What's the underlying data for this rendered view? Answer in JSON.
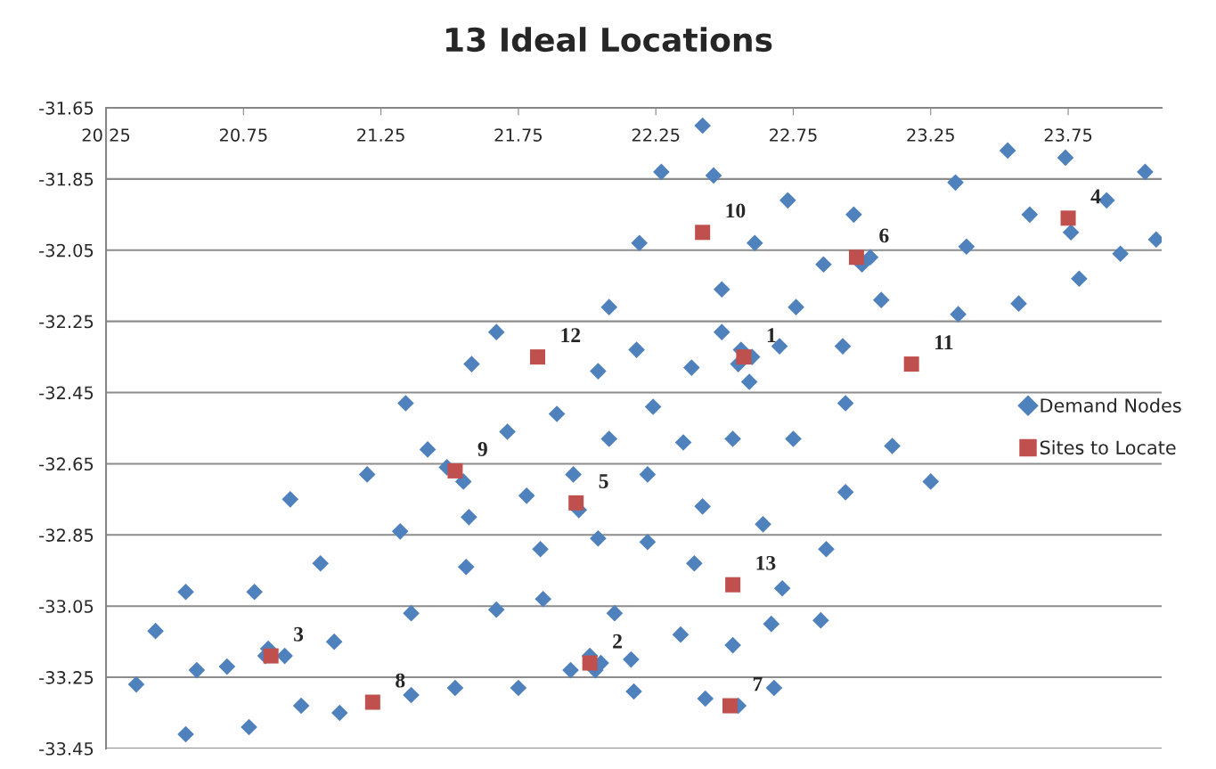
{
  "chart_data": {
    "type": "scatter",
    "title": "13 Ideal Locations",
    "xlim": [
      20.25,
      24.09
    ],
    "xticks": [
      20.25,
      20.75,
      21.25,
      21.75,
      22.25,
      22.75,
      23.25,
      23.75
    ],
    "ylim": [
      -33.45,
      -31.65
    ],
    "yticks": [
      -33.45,
      -33.25,
      -33.05,
      -32.85,
      -32.65,
      -32.45,
      -32.25,
      -32.05,
      -31.85,
      -31.65
    ],
    "grid": "y",
    "legend": "right",
    "series": [
      {
        "name": "Demand Nodes",
        "color": "#4f81bd",
        "marker": "diamond",
        "x": [
          22.42,
          22.27,
          22.46,
          22.73,
          23.34,
          23.53,
          23.74,
          24.03,
          22.97,
          23.61,
          23.89,
          23.76,
          24.07,
          22.19,
          22.61,
          23.38,
          23.94,
          22.86,
          23.03,
          23.0,
          23.79,
          22.49,
          22.76,
          23.07,
          23.57,
          23.35,
          22.08,
          21.67,
          22.49,
          22.18,
          22.7,
          22.93,
          21.58,
          22.04,
          22.38,
          22.56,
          22.6,
          22.55,
          22.59,
          21.34,
          22.24,
          21.89,
          22.94,
          21.71,
          22.08,
          22.35,
          22.53,
          22.75,
          21.42,
          23.11,
          21.49,
          21.55,
          21.95,
          22.22,
          23.25,
          20.92,
          21.2,
          21.78,
          21.97,
          22.42,
          22.94,
          22.64,
          21.57,
          21.32,
          22.04,
          22.22,
          21.83,
          22.87,
          21.56,
          21.03,
          22.39,
          20.54,
          20.79,
          22.71,
          21.36,
          21.67,
          21.84,
          22.1,
          22.67,
          22.85,
          20.43,
          21.08,
          22.34,
          20.84,
          20.9,
          20.83,
          22.01,
          22.05,
          22.03,
          21.94,
          22.16,
          22.53,
          20.69,
          20.58,
          20.36,
          20.96,
          21.1,
          21.36,
          21.52,
          21.75,
          22.17,
          22.43,
          22.55,
          22.68,
          20.54,
          20.77
        ],
        "values": [
          -31.7,
          -31.83,
          -31.84,
          -31.91,
          -31.86,
          -31.77,
          -31.79,
          -31.83,
          -31.95,
          -31.95,
          -31.91,
          -32.0,
          -32.02,
          -32.03,
          -32.03,
          -32.04,
          -32.06,
          -32.09,
          -32.07,
          -32.09,
          -32.13,
          -32.16,
          -32.21,
          -32.19,
          -32.2,
          -32.23,
          -32.21,
          -32.28,
          -32.28,
          -32.33,
          -32.32,
          -32.32,
          -32.37,
          -32.39,
          -32.38,
          -32.33,
          -32.35,
          -32.37,
          -32.42,
          -32.48,
          -32.49,
          -32.51,
          -32.48,
          -32.56,
          -32.58,
          -32.59,
          -32.58,
          -32.58,
          -32.61,
          -32.6,
          -32.66,
          -32.7,
          -32.68,
          -32.68,
          -32.7,
          -32.75,
          -32.68,
          -32.74,
          -32.78,
          -32.77,
          -32.73,
          -32.82,
          -32.8,
          -32.84,
          -32.86,
          -32.87,
          -32.89,
          -32.89,
          -32.94,
          -32.93,
          -32.93,
          -33.01,
          -33.01,
          -33.0,
          -33.07,
          -33.06,
          -33.03,
          -33.07,
          -33.1,
          -33.09,
          -33.12,
          -33.15,
          -33.13,
          -33.17,
          -33.19,
          -33.19,
          -33.19,
          -33.21,
          -33.23,
          -33.23,
          -33.2,
          -33.16,
          -33.22,
          -33.23,
          -33.27,
          -33.33,
          -33.35,
          -33.3,
          -33.28,
          -33.28,
          -33.29,
          -33.31,
          -33.33,
          -33.28,
          -33.41,
          -33.39
        ]
      },
      {
        "name": "Sites to Locate",
        "color": "#c0504d",
        "marker": "square",
        "x": [
          22.57,
          22.01,
          20.85,
          23.75,
          21.96,
          22.98,
          22.52,
          21.22,
          21.52,
          22.42,
          23.18,
          21.82,
          22.53
        ],
        "values": [
          -32.35,
          -33.21,
          -33.19,
          -31.96,
          -32.76,
          -32.07,
          -33.33,
          -33.32,
          -32.67,
          -32.0,
          -32.37,
          -32.35,
          -32.99
        ]
      }
    ],
    "annotations": [
      {
        "text": "1",
        "x": 22.57,
        "y": -32.35
      },
      {
        "text": "2",
        "x": 22.01,
        "y": -33.21
      },
      {
        "text": "3",
        "x": 20.85,
        "y": -33.19
      },
      {
        "text": "4",
        "x": 23.75,
        "y": -31.96
      },
      {
        "text": "5",
        "x": 21.96,
        "y": -32.76
      },
      {
        "text": "6",
        "x": 22.98,
        "y": -32.07
      },
      {
        "text": "7",
        "x": 22.52,
        "y": -33.33
      },
      {
        "text": "8",
        "x": 21.22,
        "y": -33.32
      },
      {
        "text": "9",
        "x": 21.52,
        "y": -32.67
      },
      {
        "text": "10",
        "x": 22.42,
        "y": -32.0
      },
      {
        "text": "11",
        "x": 23.18,
        "y": -32.37
      },
      {
        "text": "12",
        "x": 21.82,
        "y": -32.35
      },
      {
        "text": "13",
        "x": 22.53,
        "y": -32.99
      }
    ]
  }
}
